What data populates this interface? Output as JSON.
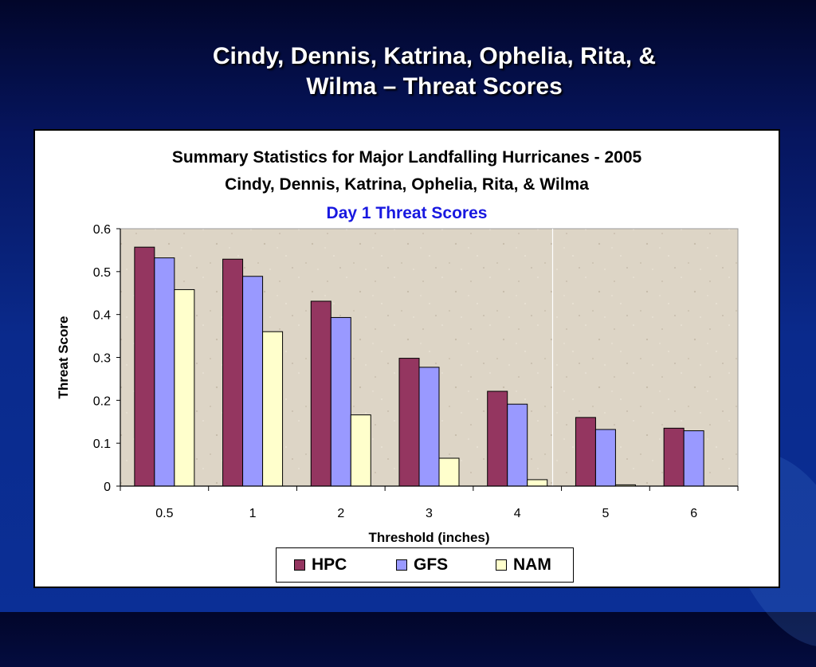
{
  "slide": {
    "title_line1": "Cindy, Dennis, Katrina, Ophelia, Rita, &",
    "title_line2": "Wilma – Threat Scores"
  },
  "chart_data": {
    "type": "bar",
    "title": "Summary Statistics for Major Landfalling Hurricanes - 2005",
    "subtitle": "Cindy, Dennis, Katrina, Ophelia, Rita, & Wilma",
    "subtitle2": "Day 1 Threat Scores",
    "xlabel": "Threshold (inches)",
    "ylabel": "Threat Score",
    "categories": [
      "0.5",
      "1",
      "2",
      "3",
      "4",
      "5",
      "6"
    ],
    "ylim": [
      0,
      0.6
    ],
    "yticks": [
      "0",
      "0.1",
      "0.2",
      "0.3",
      "0.4",
      "0.5",
      "0.6"
    ],
    "grid": false,
    "legend_position": "bottom",
    "series": [
      {
        "name": "HPC",
        "color": "#943660",
        "values": [
          0.557,
          0.529,
          0.431,
          0.298,
          0.221,
          0.16,
          0.135
        ]
      },
      {
        "name": "GFS",
        "color": "#9999ff",
        "values": [
          0.532,
          0.489,
          0.393,
          0.277,
          0.191,
          0.132,
          0.129
        ]
      },
      {
        "name": "NAM",
        "color": "#ffffcc",
        "values": [
          0.458,
          0.36,
          0.166,
          0.065,
          0.015,
          0.003,
          null
        ]
      }
    ]
  }
}
